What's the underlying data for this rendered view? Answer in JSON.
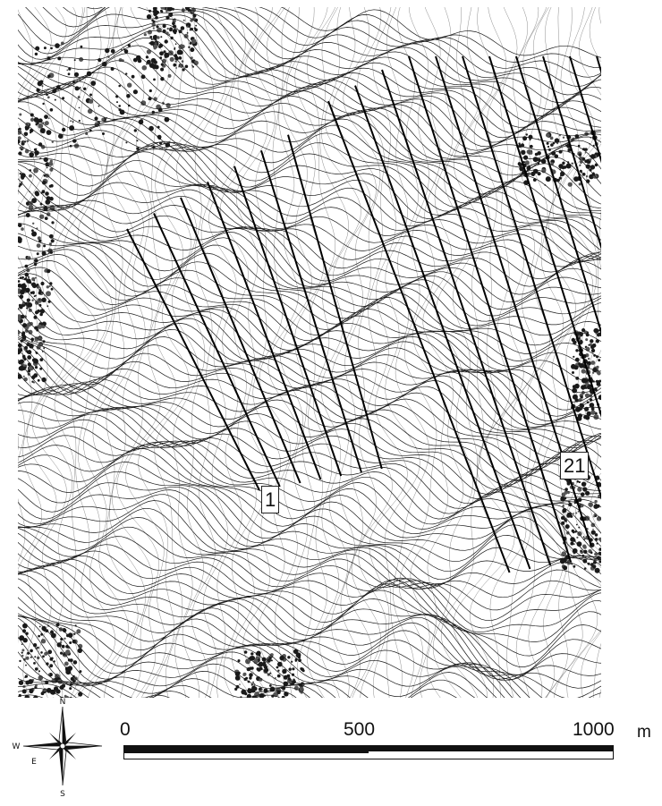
{
  "map": {
    "survey_lines": {
      "first_label": "1",
      "last_label": "21",
      "count": 21
    },
    "scale_bar": {
      "tick_labels": [
        "0",
        "500",
        "1000"
      ],
      "unit": "m"
    },
    "north_arrow": {
      "north": "N",
      "south": "S",
      "east": "E",
      "west": "W"
    },
    "colors": {
      "contour": "#1a1a1a",
      "survey_line": "#000000",
      "background": "#ffffff"
    }
  }
}
